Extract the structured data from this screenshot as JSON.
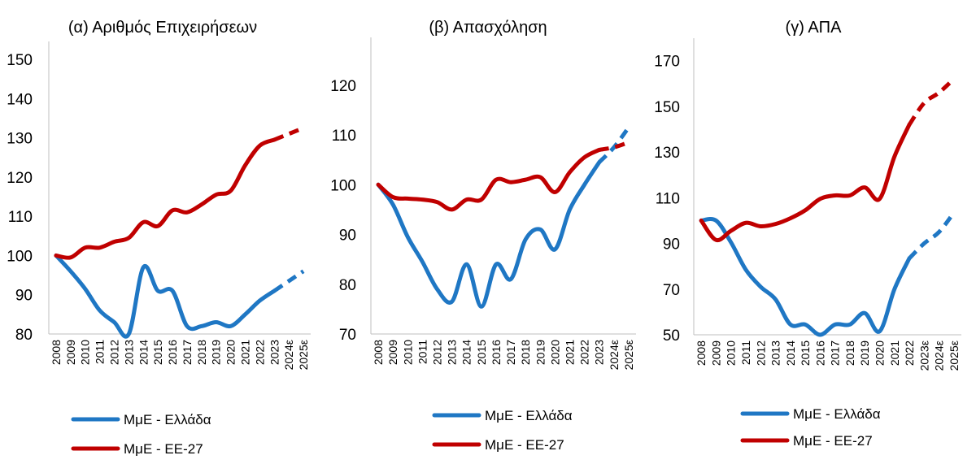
{
  "colors": {
    "greece": "#1F77C4",
    "eu27": "#C00000",
    "axis": "#BFBFBF"
  },
  "chart_data": [
    {
      "type": "line",
      "title": "(α) Αριθμός Επιχειρήσεων",
      "categories": [
        "2008",
        "2009",
        "2010",
        "2011",
        "2012",
        "2013",
        "2014",
        "2015",
        "2016",
        "2017",
        "2018",
        "2019",
        "2020",
        "2021",
        "2022",
        "2023",
        "2024ε",
        "2025ε"
      ],
      "ylim": [
        80,
        150
      ],
      "yticks": [
        "80",
        "90",
        "100",
        "110",
        "120",
        "130",
        "140",
        "150"
      ],
      "estimate_start_index": 15,
      "series": [
        {
          "name": "ΜμΕ - Ελλάδα",
          "color_key": "greece",
          "values": [
            100,
            96,
            91.5,
            86,
            83,
            80,
            97,
            91,
            91,
            82,
            82,
            83,
            82,
            85,
            88.5,
            91,
            93.5,
            96
          ]
        },
        {
          "name": "ΜμΕ - ΕΕ-27",
          "color_key": "eu27",
          "values": [
            100,
            99.5,
            102,
            102,
            103.5,
            104.5,
            108.5,
            107.5,
            111.5,
            111,
            113,
            115.5,
            116.5,
            123,
            128,
            129.5,
            131,
            132.5
          ]
        }
      ]
    },
    {
      "type": "line",
      "title": "(β) Απασχόληση",
      "categories": [
        "2008",
        "2009",
        "2010",
        "2011",
        "2012",
        "2013",
        "2014",
        "2015",
        "2016",
        "2017",
        "2018",
        "2019",
        "2020",
        "2021",
        "2022",
        "2023",
        "2024ε",
        "2025ε"
      ],
      "ylim": [
        70,
        126
      ],
      "yticks": [
        "70",
        "80",
        "90",
        "100",
        "110",
        "120"
      ],
      "estimate_start_index": 15,
      "series": [
        {
          "name": "ΜμΕ - Ελλάδα",
          "color_key": "greece",
          "values": [
            100,
            96,
            89.5,
            84.5,
            79,
            76.5,
            84,
            75.5,
            84,
            81,
            89,
            91,
            87,
            95,
            100,
            104.5,
            107.5,
            111.5
          ]
        },
        {
          "name": "ΜμΕ - ΕΕ-27",
          "color_key": "eu27",
          "values": [
            100,
            97.5,
            97.2,
            97,
            96.5,
            95,
            97,
            97,
            101,
            100.5,
            101,
            101.5,
            98.5,
            102.5,
            105.5,
            107,
            107.5,
            108.5
          ]
        }
      ]
    },
    {
      "type": "line",
      "title": "(γ) ΑΠΑ",
      "categories": [
        "2008",
        "2009",
        "2010",
        "2011",
        "2012",
        "2013",
        "2014",
        "2015",
        "2016",
        "2017",
        "2018",
        "2019",
        "2020",
        "2021",
        "2022",
        "2023ε",
        "2024ε",
        "2025ε"
      ],
      "ylim": [
        50,
        172
      ],
      "yticks": [
        "50",
        "70",
        "90",
        "110",
        "130",
        "150",
        "170"
      ],
      "estimate_start_index": 14,
      "series": [
        {
          "name": "ΜμΕ - Ελλάδα",
          "color_key": "greece",
          "values": [
            100,
            100,
            90.5,
            78.5,
            71,
            65.5,
            54.5,
            54.5,
            50,
            54.5,
            54.5,
            59.5,
            51.5,
            70,
            83.5,
            90,
            95,
            103.5
          ]
        },
        {
          "name": "ΜμΕ - ΕΕ-27",
          "color_key": "eu27",
          "values": [
            100,
            91.5,
            95.5,
            99,
            97.5,
            98.5,
            101,
            104.5,
            109.5,
            111,
            111,
            114.5,
            109.5,
            128,
            142,
            151.5,
            156,
            162
          ]
        }
      ]
    }
  ]
}
